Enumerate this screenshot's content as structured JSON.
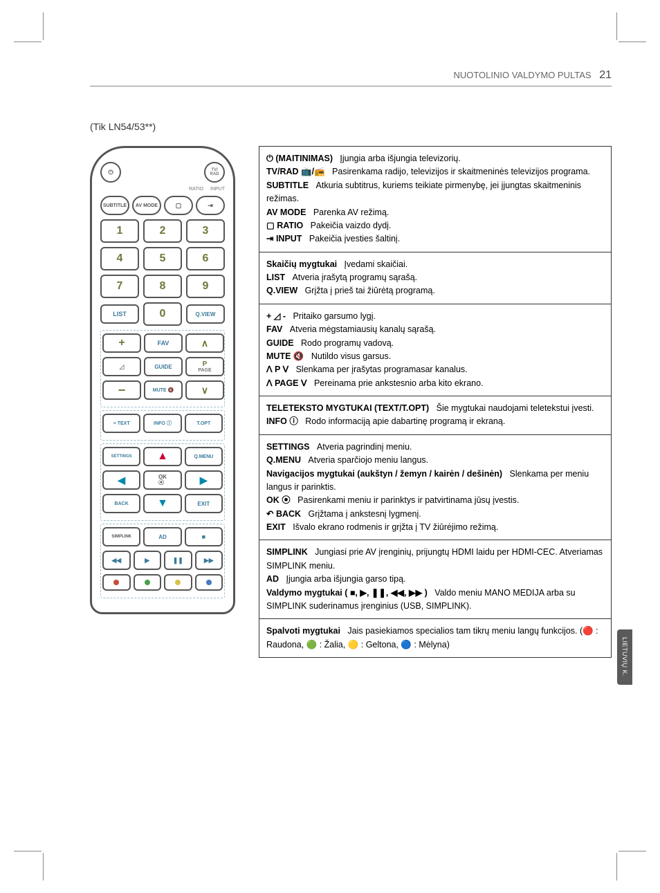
{
  "header": {
    "section_title": "NUOTOLINIO VALDYMO PULTAS",
    "page_number": "21"
  },
  "model_note": "(Tik LN54/53**)",
  "side_tab": "LIETUVIŲ K.",
  "remote": {
    "power": "⏻",
    "tvrad": "TV/\nRAD",
    "subtitle": "SUBTITLE",
    "avmode": "AV MODE",
    "ratio_lbl": "RATIO",
    "input_lbl": "INPUT",
    "ratio_icon": "▢",
    "input_icon": "⇥",
    "nums": [
      "1",
      "2",
      "3",
      "4",
      "5",
      "6",
      "7",
      "8",
      "9",
      "0"
    ],
    "list": "LIST",
    "qview": "Q.VIEW",
    "fav": "FAV",
    "guide": "GUIDE",
    "p": "P",
    "page": "PAGE",
    "mute": "MUTE 🔇",
    "text": "≡ TEXT",
    "info": "INFO ⓘ",
    "topt": "T.OPT",
    "settings": "SETTINGS",
    "qmenu": "Q.MENU",
    "ok": "OK\n⦿",
    "back": "BACK",
    "exit": "EXIT",
    "simplink": "SIMPLINK",
    "ad": "AD",
    "play_stop": "■",
    "pb_rr": "◀◀",
    "pb_play": "▶",
    "pb_pause": "❚❚",
    "pb_ff": "▶▶",
    "colors": {
      "red": "#c94b3a",
      "green": "#4aa04a",
      "yellow": "#d8c24a",
      "blue": "#4a7ac0"
    }
  },
  "boxes": [
    {
      "lines": [
        {
          "b": "⏻ (MAITINIMAS)",
          "t": "Įjungia arba išjungia televizorių."
        },
        {
          "b": "TV/RAD 📺/📻",
          "t": "Pasirenkama radijo, televizijos ir skaitmeninės televizijos programa."
        },
        {
          "b": "SUBTITLE",
          "t": "Atkuria subtitrus, kuriems teikiate pirmenybę, jei įjungtas skaitmeninis režimas."
        },
        {
          "b": "AV MODE",
          "t": "Parenka AV režimą."
        },
        {
          "b": "▢ RATIO",
          "t": "Pakeičia vaizdo dydį."
        },
        {
          "b": "⇥ INPUT",
          "t": "Pakeičia įvesties šaltinį."
        }
      ]
    },
    {
      "lines": [
        {
          "b": "Skaičių mygtukai",
          "t": "Įvedami skaičiai."
        },
        {
          "b": "LIST",
          "t": "Atveria įrašytą programų sąrašą."
        },
        {
          "b": "Q.VIEW",
          "t": "Grįžta į prieš tai žiūrėtą programą."
        }
      ]
    },
    {
      "lines": [
        {
          "b": "+ ◿ -",
          "t": "Pritaiko garsumo lygį."
        },
        {
          "b": "FAV",
          "t": "Atveria mėgstamiausių kanalų sąrašą."
        },
        {
          "b": "GUIDE",
          "t": "Rodo programų vadovą."
        },
        {
          "b": "MUTE 🔇",
          "t": "Nutildo visus garsus."
        },
        {
          "b": "ꓥ P ꓦ",
          "t": "Slenkama per įrašytas programasar kanalus."
        },
        {
          "b": "ꓥ PAGE ꓦ",
          "t": "Pereinama prie ankstesnio arba kito ekrano."
        }
      ]
    },
    {
      "lines": [
        {
          "b": "TELETEKSTO MYGTUKAI (TEXT/T.OPT)",
          "t": "Šie mygtukai naudojami teletekstui įvesti."
        },
        {
          "b": "INFO ⓘ",
          "t": "Rodo informaciją apie dabartinę programą ir ekraną."
        }
      ]
    },
    {
      "lines": [
        {
          "b": "SETTINGS",
          "t": "Atveria pagrindinį meniu."
        },
        {
          "b": "Q.MENU",
          "t": "Atveria sparčiojo meniu langus."
        },
        {
          "b": "Navigacijos mygtukai (aukštyn / žemyn / kairėn / dešinėn)",
          "t": "Slenkama per meniu langus ir parinktis."
        },
        {
          "b": "OK ⦿",
          "t": "Pasirenkami meniu ir parinktys ir patvirtinama jūsų įvestis."
        },
        {
          "b": "↶ BACK",
          "t": "Grįžtama į ankstesnį lygmenį."
        },
        {
          "b": "EXIT",
          "t": "Išvalo ekrano rodmenis ir grįžta į TV žiūrėjimo režimą."
        }
      ]
    },
    {
      "lines": [
        {
          "b": "SIMPLINK",
          "t": "Jungiasi prie AV įrenginių, prijungtų HDMI laidu per HDMI-CEC. Atveriamas SIMPLINK meniu."
        },
        {
          "b": "AD",
          "t": "Įjungia arba išjungia garso tipą."
        },
        {
          "b": "Valdymo mygtukai ( ■, ▶, ❚❚, ◀◀, ▶▶ )",
          "t": "Valdo meniu MANO MEDIJA arba su SIMPLINK suderinamus įrenginius (USB, SIMPLINK)."
        }
      ]
    },
    {
      "lines": [
        {
          "b": "Spalvoti mygtukai",
          "t": "Jais pasiekiamos specialios tam tikrų meniu langų funkcijos. (🔴 : Raudona, 🟢 : Žalia, 🟡 : Geltona, 🔵 : Mėlyna)"
        }
      ]
    }
  ]
}
